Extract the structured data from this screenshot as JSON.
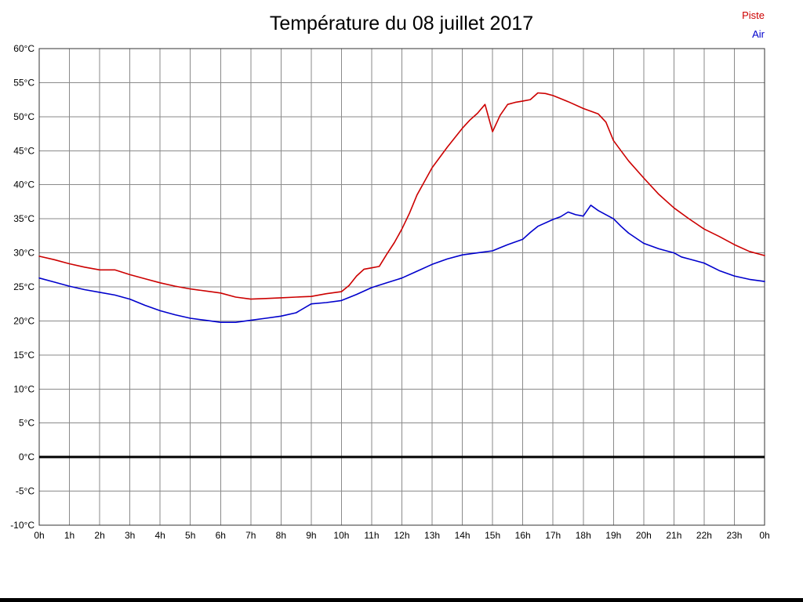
{
  "title": "Température du 08 juillet 2017",
  "legend": {
    "piste_label": "Piste",
    "air_label": "Air"
  },
  "colors": {
    "piste": "#cc0000",
    "air": "#0000cc",
    "grid": "#8a8a8a",
    "plot_border": "#333333",
    "zero_line": "#000000",
    "text": "#000000"
  },
  "chart_data": {
    "type": "line",
    "title": "Température du 08 juillet 2017",
    "xlabel": "",
    "ylabel": "",
    "x_unit": "hours",
    "xlim": [
      0,
      24
    ],
    "ylim": [
      -10,
      60
    ],
    "grid": true,
    "zero_line_at": 0,
    "legend_position": "top-right",
    "x_tick_labels": [
      "0h",
      "1h",
      "2h",
      "3h",
      "4h",
      "5h",
      "6h",
      "7h",
      "8h",
      "9h",
      "10h",
      "11h",
      "12h",
      "13h",
      "14h",
      "15h",
      "16h",
      "17h",
      "18h",
      "19h",
      "20h",
      "21h",
      "22h",
      "23h",
      "0h"
    ],
    "y_tick_values": [
      60,
      55,
      50,
      45,
      40,
      35,
      30,
      25,
      20,
      15,
      10,
      5,
      0,
      -5,
      -10
    ],
    "y_tick_labels": [
      "60°C",
      "55°C",
      "50°C",
      "45°C",
      "40°C",
      "35°C",
      "30°C",
      "25°C",
      "20°C",
      "15°C",
      "10°C",
      "5°C",
      "0°C",
      "-5°C",
      "-10°C"
    ],
    "series": [
      {
        "name": "Piste",
        "color": "#cc0000",
        "points": [
          [
            0,
            29.5
          ],
          [
            0.5,
            29
          ],
          [
            1,
            28.4
          ],
          [
            1.5,
            27.9
          ],
          [
            2,
            27.5
          ],
          [
            2.5,
            27.5
          ],
          [
            3,
            26.8
          ],
          [
            3.5,
            26.2
          ],
          [
            4,
            25.6
          ],
          [
            4.5,
            25.1
          ],
          [
            5,
            24.7
          ],
          [
            5.5,
            24.4
          ],
          [
            6,
            24.1
          ],
          [
            6.5,
            23.5
          ],
          [
            7,
            23.2
          ],
          [
            7.5,
            23.3
          ],
          [
            8,
            23.4
          ],
          [
            8.5,
            23.5
          ],
          [
            9,
            23.6
          ],
          [
            9.5,
            24
          ],
          [
            10,
            24.3
          ],
          [
            10.25,
            25.2
          ],
          [
            10.5,
            26.6
          ],
          [
            10.75,
            27.6
          ],
          [
            11,
            27.8
          ],
          [
            11.25,
            28
          ],
          [
            11.5,
            29.8
          ],
          [
            11.75,
            31.5
          ],
          [
            12,
            33.5
          ],
          [
            12.25,
            35.8
          ],
          [
            12.5,
            38.5
          ],
          [
            12.75,
            40.5
          ],
          [
            13,
            42.5
          ],
          [
            13.5,
            45.5
          ],
          [
            14,
            48.3
          ],
          [
            14.25,
            49.5
          ],
          [
            14.5,
            50.5
          ],
          [
            14.75,
            51.8
          ],
          [
            15,
            47.8
          ],
          [
            15.25,
            50.2
          ],
          [
            15.5,
            51.8
          ],
          [
            15.75,
            52.1
          ],
          [
            16,
            52.3
          ],
          [
            16.25,
            52.5
          ],
          [
            16.5,
            53.5
          ],
          [
            16.75,
            53.4
          ],
          [
            17,
            53.1
          ],
          [
            17.5,
            52.2
          ],
          [
            18,
            51.2
          ],
          [
            18.25,
            50.8
          ],
          [
            18.5,
            50.4
          ],
          [
            18.75,
            49.2
          ],
          [
            19,
            46.5
          ],
          [
            19.25,
            45
          ],
          [
            19.5,
            43.5
          ],
          [
            20,
            41
          ],
          [
            20.5,
            38.6
          ],
          [
            21,
            36.6
          ],
          [
            21.5,
            35
          ],
          [
            22,
            33.5
          ],
          [
            22.5,
            32.4
          ],
          [
            23,
            31.2
          ],
          [
            23.5,
            30.2
          ],
          [
            24,
            29.6
          ]
        ]
      },
      {
        "name": "Air",
        "color": "#0000cc",
        "points": [
          [
            0,
            26.3
          ],
          [
            0.5,
            25.7
          ],
          [
            1,
            25.1
          ],
          [
            1.5,
            24.6
          ],
          [
            2,
            24.2
          ],
          [
            2.5,
            23.8
          ],
          [
            3,
            23.2
          ],
          [
            3.5,
            22.3
          ],
          [
            4,
            21.5
          ],
          [
            4.5,
            20.9
          ],
          [
            5,
            20.4
          ],
          [
            5.5,
            20.1
          ],
          [
            6,
            19.8
          ],
          [
            6.5,
            19.8
          ],
          [
            7,
            20.1
          ],
          [
            7.5,
            20.4
          ],
          [
            8,
            20.7
          ],
          [
            8.5,
            21.2
          ],
          [
            9,
            22.5
          ],
          [
            9.5,
            22.7
          ],
          [
            10,
            23
          ],
          [
            10.5,
            23.9
          ],
          [
            11,
            24.9
          ],
          [
            11.5,
            25.6
          ],
          [
            12,
            26.3
          ],
          [
            12.5,
            27.3
          ],
          [
            13,
            28.3
          ],
          [
            13.5,
            29.1
          ],
          [
            14,
            29.7
          ],
          [
            14.5,
            30
          ],
          [
            15,
            30.3
          ],
          [
            15.5,
            31.2
          ],
          [
            16,
            32
          ],
          [
            16.25,
            33
          ],
          [
            16.5,
            33.9
          ],
          [
            17,
            34.9
          ],
          [
            17.25,
            35.3
          ],
          [
            17.5,
            36
          ],
          [
            17.75,
            35.6
          ],
          [
            18,
            35.4
          ],
          [
            18.25,
            37
          ],
          [
            18.5,
            36.2
          ],
          [
            18.75,
            35.6
          ],
          [
            19,
            35
          ],
          [
            19.25,
            33.9
          ],
          [
            19.5,
            32.9
          ],
          [
            20,
            31.4
          ],
          [
            20.5,
            30.6
          ],
          [
            21,
            30
          ],
          [
            21.25,
            29.4
          ],
          [
            21.5,
            29.1
          ],
          [
            22,
            28.5
          ],
          [
            22.5,
            27.4
          ],
          [
            23,
            26.6
          ],
          [
            23.5,
            26.1
          ],
          [
            24,
            25.8
          ]
        ]
      }
    ]
  }
}
